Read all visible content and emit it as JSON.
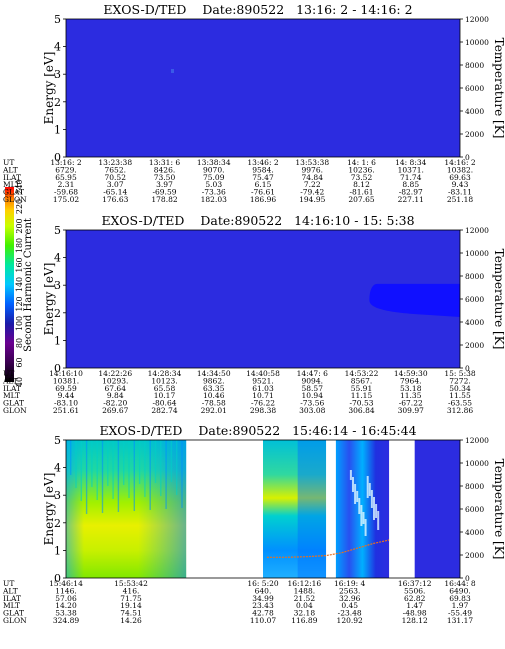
{
  "colorbar": {
    "label": "Second Harmonic Current",
    "ticks": [
      "40",
      "60",
      "80",
      "100",
      "120",
      "140",
      "160",
      "180",
      "200",
      "220",
      "240"
    ],
    "colors": [
      "#000000",
      "#3a0050",
      "#6a0090",
      "#1a1aa8",
      "#0060ff",
      "#00c8ff",
      "#00e8a0",
      "#40f000",
      "#c8ff00",
      "#ffd000",
      "#ff8000",
      "#ff0000"
    ]
  },
  "chart_data": [
    {
      "type": "heatmap",
      "title": "EXOS-D/TED    Date:890522   13:16: 2 - 14:16: 2",
      "ylabel": "Energy [eV]",
      "ylabel_right": "Temperature [K]",
      "ylim": [
        0,
        5
      ],
      "ylim_right": [
        0,
        12000
      ],
      "yticks": [
        "0",
        "1",
        "2",
        "3",
        "4",
        "5"
      ],
      "yticks_right": [
        "0",
        "2000",
        "4000",
        "6000",
        "8000",
        "10000",
        "12000"
      ],
      "background": "#2c2ce0",
      "features": [],
      "orbit_table": {
        "labels": [
          "UT",
          "ALT",
          "ILAT",
          "MLT",
          "GLAT",
          "GLON"
        ],
        "columns": [
          [
            "13:16: 2",
            "6729.",
            "65.95",
            "2.31",
            "-59.68",
            "175.02"
          ],
          [
            "13:23:38",
            "7652.",
            "70.52",
            "3.07",
            "-65.14",
            "176.63"
          ],
          [
            "13:31: 6",
            "8426.",
            "73.50",
            "3.97",
            "-69.59",
            "178.82"
          ],
          [
            "13:38:34",
            "9070.",
            "75.09",
            "5.03",
            "-73.36",
            "182.03"
          ],
          [
            "13:46: 2",
            "9584.",
            "75.47",
            "6.15",
            "-76.61",
            "186.96"
          ],
          [
            "13:53:38",
            "9976.",
            "74.84",
            "7.22",
            "-79.42",
            "194.95"
          ],
          [
            "14: 1: 6",
            "10236.",
            "73.52",
            "8.12",
            "-81.61",
            "207.65"
          ],
          [
            "14: 8:34",
            "10371.",
            "71.74",
            "8.85",
            "-82.97",
            "227.11"
          ],
          [
            "14:16: 2",
            "10382.",
            "69.63",
            "9.43",
            "-83.11",
            "251.18"
          ]
        ]
      }
    },
    {
      "type": "heatmap",
      "title": "EXOS-D/TED    Date:890522   14:16:10 - 15: 5:38",
      "ylabel": "Energy [eV]",
      "ylabel_right": "Temperature [K]",
      "ylim": [
        0,
        5
      ],
      "ylim_right": [
        0,
        12000
      ],
      "yticks": [
        "0",
        "1",
        "2",
        "3",
        "4",
        "5"
      ],
      "yticks_right": [
        "0",
        "2000",
        "4000",
        "6000",
        "8000",
        "10000",
        "12000"
      ],
      "background": "#2c2ce0",
      "features": [
        {
          "kind": "patch",
          "color": "#1010ff",
          "x_from": 0.77,
          "x_to": 1.0,
          "y_low": 1.85,
          "y_high": 3.05
        }
      ],
      "orbit_table": {
        "labels": [
          "UT",
          "ALT",
          "ILAT",
          "MLT",
          "GLAT",
          "GLON"
        ],
        "columns": [
          [
            "14:16:10",
            "10381.",
            "69.59",
            "9.44",
            "-83.10",
            "251.61"
          ],
          [
            "14:22:26",
            "10293.",
            "67.64",
            "9.84",
            "-82.20",
            "269.67"
          ],
          [
            "14:28:34",
            "10123.",
            "65.58",
            "10.17",
            "-80.64",
            "282.74"
          ],
          [
            "14:34:50",
            "9862.",
            "63.35",
            "10.46",
            "-78.58",
            "292.01"
          ],
          [
            "14:40:58",
            "9521.",
            "61.03",
            "10.71",
            "-76.22",
            "298.38"
          ],
          [
            "14:47: 6",
            "9094.",
            "58.57",
            "10.94",
            "-73.56",
            "303.08"
          ],
          [
            "14:53:22",
            "8567.",
            "55.91",
            "11.15",
            "-70.53",
            "306.84"
          ],
          [
            "14:59:30",
            "7964.",
            "53.18",
            "11.35",
            "-67.22",
            "309.97"
          ],
          [
            "15: 5:38",
            "7272.",
            "50.34",
            "11.55",
            "-63.55",
            "312.86"
          ]
        ]
      }
    },
    {
      "type": "heatmap",
      "title": "EXOS-D/TED    Date:890522   15:46:14 - 16:45:44",
      "ylabel": "Energy [eV]",
      "ylabel_right": "Temperature [K]",
      "ylim": [
        0,
        5
      ],
      "ylim_right": [
        0,
        12000
      ],
      "yticks": [
        "0",
        "1",
        "2",
        "3",
        "4",
        "5"
      ],
      "yticks_right": [
        "0",
        "2000",
        "4000",
        "6000",
        "8000",
        "10000",
        "12000"
      ],
      "background": "#ffffff",
      "segments": [
        {
          "x_from": 0.0,
          "x_to": 0.305,
          "style": "intense"
        },
        {
          "x_from": 0.5,
          "x_to": 0.66,
          "style": "moderate"
        },
        {
          "x_from": 0.685,
          "x_to": 0.82,
          "style": "weak"
        },
        {
          "x_from": 0.885,
          "x_to": 1.0,
          "style": "flat"
        }
      ],
      "temperature_trace": [
        {
          "x": 0.51,
          "k": 1800
        },
        {
          "x": 0.56,
          "k": 1800
        },
        {
          "x": 0.61,
          "k": 1850
        },
        {
          "x": 0.66,
          "k": 1950
        },
        {
          "x": 0.7,
          "k": 2200
        },
        {
          "x": 0.74,
          "k": 2600
        },
        {
          "x": 0.78,
          "k": 3000
        },
        {
          "x": 0.82,
          "k": 3300
        }
      ],
      "orbit_table": {
        "labels": [
          "UT",
          "ALT",
          "ILAT",
          "MLT",
          "GLAT",
          "GLON"
        ],
        "columns": [
          {
            "x": 0.0,
            "values": [
              "15:46:14",
              "1146.",
              "57.06",
              "14.20",
              "53.38",
              "324.89"
            ]
          },
          {
            "x": 0.165,
            "values": [
              "15:53:42",
              "416.",
              "71.75",
              "19.14",
              "74.51",
              "14.26"
            ]
          },
          {
            "x": 0.5,
            "values": [
              "16: 5:20",
              "640.",
              "34.99",
              "23.43",
              "42.78",
              "110.07"
            ]
          },
          {
            "x": 0.605,
            "values": [
              "16:12:16",
              "1488.",
              "21.52",
              "0.04",
              "32.18",
              "116.89"
            ]
          },
          {
            "x": 0.72,
            "values": [
              "16:19: 4",
              "2563.",
              "32.96",
              "0.45",
              "-23.48",
              "120.92"
            ]
          },
          {
            "x": 0.885,
            "values": [
              "16:37:12",
              "5506.",
              "62.82",
              "1.47",
              "-48.98",
              "128.12"
            ]
          },
          {
            "x": 1.0,
            "values": [
              "16:44: 8",
              "6490.",
              "69.83",
              "1.97",
              "-55.49",
              "131.17"
            ]
          }
        ]
      }
    }
  ]
}
